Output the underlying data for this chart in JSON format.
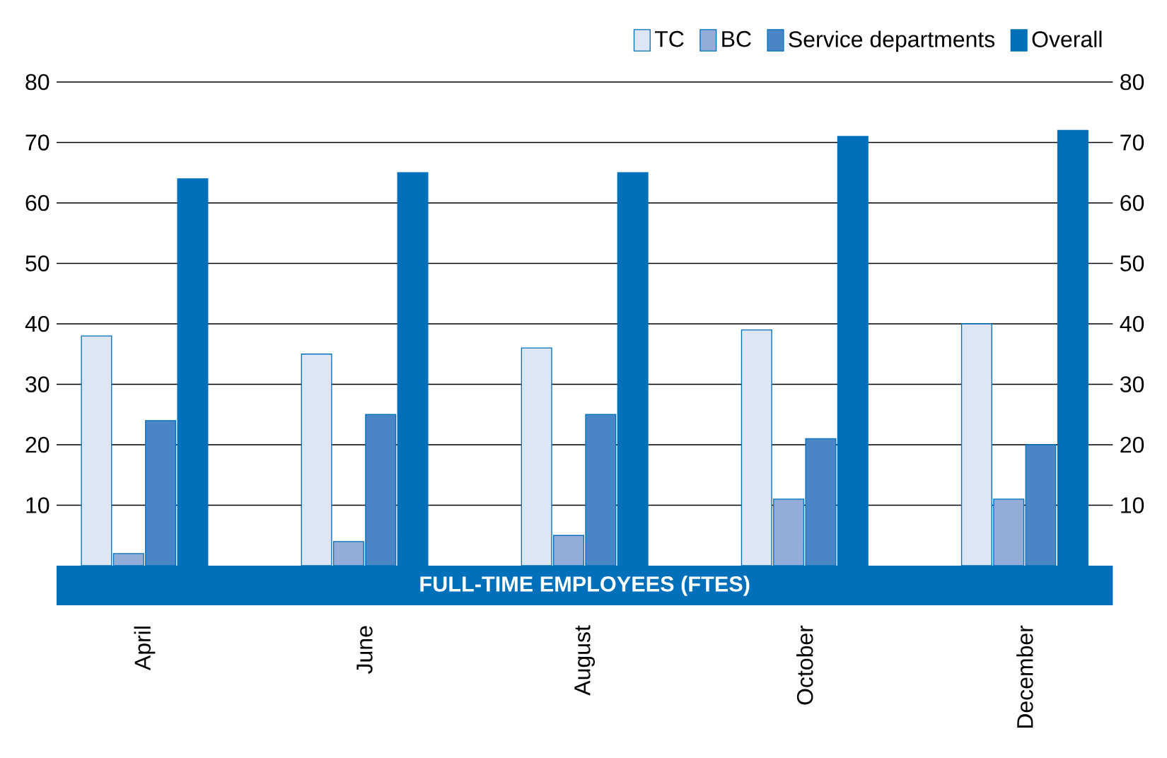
{
  "chart_data": {
    "type": "bar",
    "xlabel": "FULL-TIME EMPLOYEES (FTES)",
    "categories": [
      "April",
      "June",
      "August",
      "October",
      "December"
    ],
    "series": [
      {
        "name": "TC",
        "color": "#dde6f5",
        "values": [
          38,
          35,
          36,
          39,
          40
        ]
      },
      {
        "name": "BC",
        "color": "#93add8",
        "values": [
          2,
          4,
          5,
          11,
          11
        ]
      },
      {
        "name": "Service departments",
        "color": "#4a86c5",
        "values": [
          24,
          25,
          25,
          21,
          20
        ]
      },
      {
        "name": "Overall",
        "color": "#0070ba",
        "values": [
          64,
          65,
          65,
          71,
          72
        ]
      }
    ],
    "ylim": [
      0,
      80
    ],
    "yticks": [
      10,
      20,
      30,
      40,
      50,
      60,
      70,
      80
    ],
    "y2lim": [
      0,
      80
    ],
    "y2ticks": [
      10,
      20,
      30,
      40,
      50,
      60,
      70,
      80
    ],
    "grid": "y",
    "legend": "top right"
  }
}
